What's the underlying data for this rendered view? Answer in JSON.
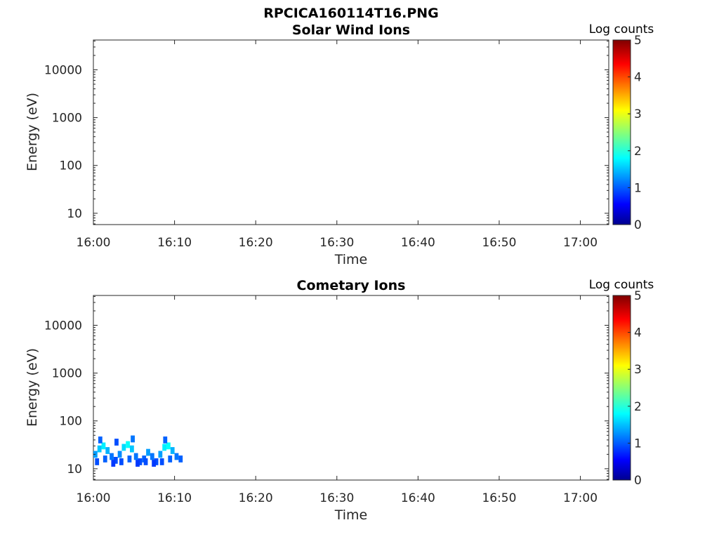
{
  "figure_title": "RPCICA160114T16.PNG",
  "chart_data": [
    {
      "type": "heatmap",
      "title": "Solar Wind Ions",
      "xlabel": "Time",
      "ylabel": "Energy (eV)",
      "x_ticks": [
        "16:00",
        "16:10",
        "16:20",
        "16:30",
        "16:40",
        "16:50",
        "17:00"
      ],
      "x_range_minutes": [
        0,
        63.5
      ],
      "y_ticks": [
        "10",
        "100",
        "1000",
        "10000"
      ],
      "y_scale": "log",
      "y_range": [
        5.8,
        42000
      ],
      "colorbar": {
        "title": "Log counts",
        "ticks": [
          "0",
          "1",
          "2",
          "3",
          "4",
          "5"
        ],
        "range": [
          0,
          5
        ],
        "colormap": "jet"
      },
      "cells": []
    },
    {
      "type": "heatmap",
      "title": "Cometary Ions",
      "xlabel": "Time",
      "ylabel": "Energy (eV)",
      "x_ticks": [
        "16:00",
        "16:10",
        "16:20",
        "16:30",
        "16:40",
        "16:50",
        "17:00"
      ],
      "x_range_minutes": [
        0,
        63.5
      ],
      "y_ticks": [
        "10",
        "100",
        "1000",
        "10000"
      ],
      "y_scale": "log",
      "y_range": [
        5.8,
        42000
      ],
      "colorbar": {
        "title": "Log counts",
        "ticks": [
          "0",
          "1",
          "2",
          "3",
          "4",
          "5"
        ],
        "range": [
          0,
          5
        ],
        "colormap": "jet"
      },
      "cells": [
        [
          0.0,
          20,
          1.4
        ],
        [
          0.5,
          26,
          1.6
        ],
        [
          1.0,
          30,
          1.8
        ],
        [
          1.5,
          24,
          1.5
        ],
        [
          2.0,
          18,
          1.2
        ],
        [
          2.5,
          15,
          1.0
        ],
        [
          3.0,
          20,
          1.3
        ],
        [
          3.5,
          28,
          1.7
        ],
        [
          4.0,
          32,
          1.9
        ],
        [
          4.5,
          26,
          1.6
        ],
        [
          5.0,
          18,
          1.2
        ],
        [
          5.5,
          14,
          1.0
        ],
        [
          6.0,
          16,
          1.1
        ],
        [
          6.5,
          22,
          1.4
        ],
        [
          7.0,
          18,
          1.2
        ],
        [
          7.5,
          14,
          1.0
        ],
        [
          8.0,
          20,
          1.4
        ],
        [
          8.5,
          28,
          1.8
        ],
        [
          9.0,
          30,
          1.9
        ],
        [
          9.5,
          24,
          1.5
        ],
        [
          10.0,
          18,
          1.2
        ],
        [
          10.5,
          16,
          1.1
        ],
        [
          0.2,
          14,
          1.0
        ],
        [
          1.2,
          16,
          1.1
        ],
        [
          2.2,
          13,
          0.9
        ],
        [
          3.2,
          14,
          1.0
        ],
        [
          4.2,
          16,
          1.1
        ],
        [
          5.2,
          13,
          0.9
        ],
        [
          6.2,
          14,
          1.0
        ],
        [
          7.2,
          13,
          0.9
        ],
        [
          8.2,
          14,
          1.0
        ],
        [
          9.2,
          16,
          1.1
        ],
        [
          0.6,
          40,
          1.1
        ],
        [
          2.6,
          36,
          1.0
        ],
        [
          4.6,
          42,
          1.2
        ],
        [
          8.6,
          40,
          1.1
        ]
      ]
    }
  ]
}
